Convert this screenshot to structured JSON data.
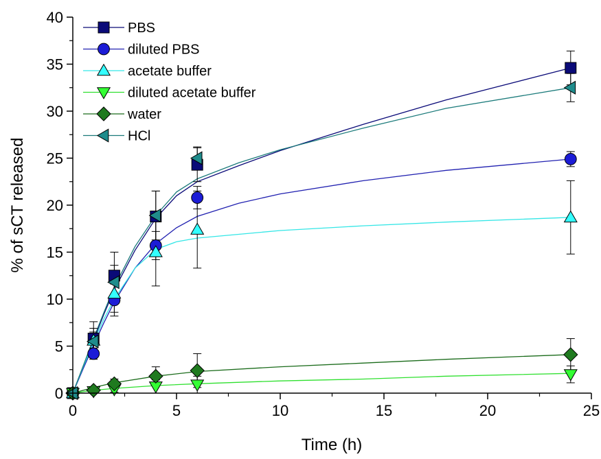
{
  "chart_data": {
    "type": "scatter",
    "xlabel": "Time (h)",
    "ylabel": "% of sCT released",
    "xlim": [
      0,
      25
    ],
    "ylim": [
      0,
      40
    ],
    "x_ticks": [
      0,
      5,
      10,
      15,
      20,
      25
    ],
    "y_ticks": [
      0,
      5,
      10,
      15,
      20,
      25,
      30,
      35,
      40
    ],
    "x_tick_labels": [
      "0",
      "5",
      "10",
      "15",
      "20",
      "25"
    ],
    "y_tick_labels": [
      "0",
      "5",
      "10",
      "15",
      "20",
      "25",
      "30",
      "35",
      "40"
    ],
    "grid": false,
    "legend_position": "top-left",
    "fitted_curves": true,
    "series": [
      {
        "name": "PBS",
        "marker": "square",
        "fill": "#0a0a78",
        "line_color": "#0a0a78",
        "x": [
          0,
          1,
          2,
          4,
          6,
          24
        ],
        "y": [
          0,
          5.8,
          12.5,
          18.8,
          24.3,
          34.6
        ],
        "err": [
          0,
          1.8,
          2.5,
          2.7,
          1.8,
          1.8
        ],
        "fit": [
          [
            0,
            0
          ],
          [
            0.5,
            2.8
          ],
          [
            1,
            5.6
          ],
          [
            1.5,
            8.4
          ],
          [
            2,
            11.0
          ],
          [
            3,
            15.2
          ],
          [
            4,
            18.6
          ],
          [
            5,
            21.0
          ],
          [
            6,
            22.5
          ],
          [
            8,
            24.2
          ],
          [
            10,
            25.8
          ],
          [
            14,
            28.6
          ],
          [
            18,
            31.2
          ],
          [
            24,
            34.6
          ]
        ]
      },
      {
        "name": "diluted PBS",
        "marker": "circle",
        "fill": "#1c1cd6",
        "line_color": "#2020b0",
        "x": [
          0,
          1,
          2,
          4,
          6,
          24
        ],
        "y": [
          0,
          4.2,
          9.9,
          15.7,
          20.8,
          24.9
        ],
        "err": [
          0,
          0.6,
          1.7,
          1.5,
          1.2,
          0.8
        ],
        "fit": [
          [
            0,
            0
          ],
          [
            0.5,
            2.6
          ],
          [
            1,
            5.1
          ],
          [
            1.5,
            7.5
          ],
          [
            2,
            9.7
          ],
          [
            3,
            13.3
          ],
          [
            4,
            15.9
          ],
          [
            5,
            17.6
          ],
          [
            6,
            18.8
          ],
          [
            8,
            20.2
          ],
          [
            10,
            21.2
          ],
          [
            14,
            22.6
          ],
          [
            18,
            23.7
          ],
          [
            24,
            24.9
          ]
        ]
      },
      {
        "name": "acetate buffer",
        "marker": "triangle-up",
        "fill": "#33ffff",
        "line_color": "#33e6e6",
        "x": [
          0,
          1,
          2,
          4,
          6,
          24
        ],
        "y": [
          0,
          5.6,
          10.6,
          15.0,
          17.4,
          18.7
        ],
        "err": [
          0,
          1.3,
          2.0,
          3.6,
          4.1,
          3.9
        ],
        "fit": [
          [
            0,
            0
          ],
          [
            0.5,
            2.8
          ],
          [
            1,
            5.4
          ],
          [
            1.5,
            7.9
          ],
          [
            2,
            10.0
          ],
          [
            3,
            13.3
          ],
          [
            4,
            15.3
          ],
          [
            5,
            16.1
          ],
          [
            6,
            16.5
          ],
          [
            8,
            16.9
          ],
          [
            10,
            17.3
          ],
          [
            14,
            17.8
          ],
          [
            18,
            18.2
          ],
          [
            24,
            18.7
          ]
        ]
      },
      {
        "name": "diluted acetate buffer",
        "marker": "triangle-down",
        "fill": "#33ff33",
        "line_color": "#2ee02e",
        "x": [
          0,
          1,
          2,
          4,
          6,
          24
        ],
        "y": [
          0,
          0.2,
          0.4,
          0.7,
          0.9,
          2.0
        ],
        "err": [
          0,
          0.2,
          0.3,
          0.7,
          0.9,
          0.9
        ],
        "fit": [
          [
            0,
            0
          ],
          [
            0.5,
            0.15
          ],
          [
            1,
            0.3
          ],
          [
            2,
            0.5
          ],
          [
            4,
            0.8
          ],
          [
            6,
            1.0
          ],
          [
            10,
            1.3
          ],
          [
            14,
            1.5
          ],
          [
            18,
            1.8
          ],
          [
            24,
            2.1
          ]
        ]
      },
      {
        "name": "water",
        "marker": "diamond",
        "fill": "#1f7a1f",
        "line_color": "#1a6b1a",
        "x": [
          0,
          1,
          2,
          4,
          6,
          24
        ],
        "y": [
          0,
          0.3,
          1.0,
          1.8,
          2.4,
          4.1
        ],
        "err": [
          0,
          0.2,
          0.5,
          1.0,
          1.8,
          1.7
        ],
        "fit": [
          [
            0,
            0
          ],
          [
            0.5,
            0.3
          ],
          [
            1,
            0.6
          ],
          [
            2,
            1.1
          ],
          [
            4,
            1.8
          ],
          [
            6,
            2.3
          ],
          [
            10,
            2.8
          ],
          [
            14,
            3.2
          ],
          [
            18,
            3.6
          ],
          [
            24,
            4.1
          ]
        ]
      },
      {
        "name": "HCl",
        "marker": "triangle-left",
        "fill": "#1f8c8c",
        "line_color": "#1a7a7a",
        "x": [
          0,
          1,
          2,
          4,
          6,
          24
        ],
        "y": [
          0,
          5.5,
          11.8,
          18.9,
          25.0,
          32.5
        ],
        "err": [
          0,
          1.0,
          1.8,
          2.6,
          1.2,
          1.5
        ],
        "fit": [
          [
            0,
            0
          ],
          [
            0.5,
            2.9
          ],
          [
            1,
            5.8
          ],
          [
            1.5,
            8.6
          ],
          [
            2,
            11.3
          ],
          [
            3,
            15.6
          ],
          [
            4,
            18.9
          ],
          [
            5,
            21.4
          ],
          [
            6,
            22.8
          ],
          [
            8,
            24.5
          ],
          [
            10,
            25.9
          ],
          [
            14,
            28.2
          ],
          [
            18,
            30.3
          ],
          [
            24,
            32.5
          ]
        ]
      }
    ]
  }
}
